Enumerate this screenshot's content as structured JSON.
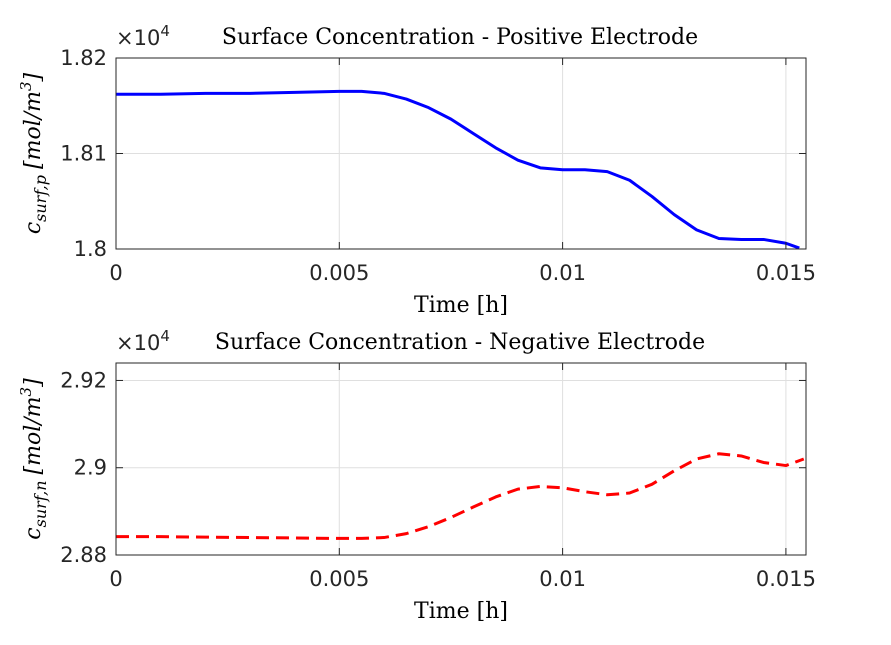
{
  "chart_data": [
    {
      "type": "line",
      "title": "Surface Concentration - Positive Electrode",
      "xlabel": "Time [h]",
      "ylabel_base": "c",
      "ylabel_sub": "surf,p",
      "ylabel_units": "[mol/m",
      "ylabel_units_exp": "3",
      "ylabel_units_close": "]",
      "exponent_base": "×10",
      "exponent_power": "4",
      "xlim": [
        0,
        0.01545
      ],
      "ylim": [
        1.8,
        1.82
      ],
      "xticks": [
        0,
        0.005,
        0.01,
        0.015
      ],
      "xtick_labels": [
        "0",
        "0.005",
        "0.01",
        "0.015"
      ],
      "yticks": [
        1.8,
        1.81,
        1.82
      ],
      "ytick_labels": [
        "1.8",
        "1.81",
        "1.82"
      ],
      "grid": true,
      "series": [
        {
          "color": "#0000ff",
          "style": "solid",
          "x": [
            0,
            0.001,
            0.002,
            0.003,
            0.004,
            0.005,
            0.0055,
            0.006,
            0.0065,
            0.007,
            0.0075,
            0.008,
            0.0085,
            0.009,
            0.0095,
            0.01,
            0.0105,
            0.011,
            0.0115,
            0.012,
            0.0125,
            0.013,
            0.0135,
            0.014,
            0.0145,
            0.015,
            0.0153
          ],
          "y": [
            1.8162,
            1.8162,
            1.8163,
            1.8163,
            1.8164,
            1.8165,
            1.8165,
            1.8163,
            1.8157,
            1.8148,
            1.8136,
            1.8121,
            1.8106,
            1.8093,
            1.8085,
            1.8083,
            1.8083,
            1.8081,
            1.8072,
            1.8055,
            1.8036,
            1.802,
            1.8011,
            1.801,
            1.801,
            1.8006,
            1.8001
          ]
        }
      ]
    },
    {
      "type": "line",
      "title": "Surface Concentration - Negative Electrode",
      "xlabel": "Time [h]",
      "ylabel_base": "c",
      "ylabel_sub": "surf,n",
      "ylabel_units": "[mol/m",
      "ylabel_units_exp": "3",
      "ylabel_units_close": "]",
      "exponent_base": "×10",
      "exponent_power": "4",
      "xlim": [
        0,
        0.01545
      ],
      "ylim": [
        2.88,
        2.924
      ],
      "xticks": [
        0,
        0.005,
        0.01,
        0.015
      ],
      "xtick_labels": [
        "0",
        "0.005",
        "0.01",
        "0.015"
      ],
      "yticks": [
        2.88,
        2.9,
        2.92
      ],
      "ytick_labels": [
        "2.88",
        "2.9",
        "2.92"
      ],
      "grid": true,
      "series": [
        {
          "color": "#ff0000",
          "style": "dashed",
          "x": [
            0,
            0.001,
            0.002,
            0.003,
            0.004,
            0.005,
            0.0055,
            0.006,
            0.0065,
            0.007,
            0.0075,
            0.008,
            0.0085,
            0.009,
            0.0095,
            0.01,
            0.0105,
            0.011,
            0.0115,
            0.012,
            0.0125,
            0.013,
            0.0135,
            0.014,
            0.0145,
            0.015,
            0.0154
          ],
          "y": [
            2.8842,
            2.8842,
            2.8841,
            2.884,
            2.8839,
            2.8838,
            2.8838,
            2.884,
            2.8849,
            2.8865,
            2.8886,
            2.891,
            2.8933,
            2.8951,
            2.8957,
            2.8954,
            2.8945,
            2.8938,
            2.8942,
            2.8962,
            2.8993,
            2.902,
            2.9032,
            2.9027,
            2.9012,
            2.9005,
            2.902
          ]
        }
      ]
    }
  ]
}
